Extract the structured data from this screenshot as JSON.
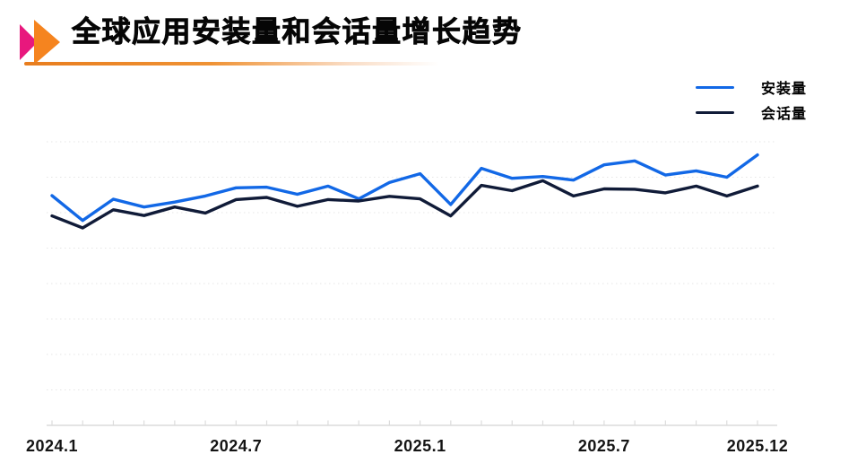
{
  "header": {
    "title": "全球应用安装量和会话量增长趋势",
    "marker_icon": {
      "name": "double-triangle-marker",
      "pink": "#E8187D",
      "orange": "#F5841F"
    },
    "underline_colors": [
      "#E87D1E",
      "rgba(255,255,255,0)"
    ]
  },
  "legend": {
    "position": "top-right",
    "items": [
      {
        "label": "安装量",
        "color": "#1268E6"
      },
      {
        "label": "会话量",
        "color": "#101B38"
      }
    ]
  },
  "chart_data": {
    "type": "line",
    "title": "全球应用安装量和会话量增长趋势",
    "xlabel": "",
    "ylabel": "",
    "y_axis_labels_visible": false,
    "grid": "horizontal-dotted",
    "ylim": [
      0,
      9
    ],
    "x": [
      "2024.1",
      "2024.2",
      "2024.3",
      "2024.4",
      "2024.5",
      "2024.6",
      "2024.7",
      "2024.8",
      "2024.9",
      "2024.10",
      "2024.11",
      "2024.12",
      "2025.1",
      "2025.2",
      "2025.3",
      "2025.4",
      "2025.5",
      "2025.6",
      "2025.7",
      "2025.8",
      "2025.9",
      "2025.10",
      "2025.11",
      "2025.12"
    ],
    "x_tick_labels": [
      "2024.1",
      "2024.7",
      "2025.1",
      "2025.7",
      "2025.12"
    ],
    "x_label_indices": [
      0,
      6,
      12,
      18,
      23
    ],
    "series": [
      {
        "name": "安装量",
        "color": "#1268E6",
        "values": [
          6.48,
          5.78,
          6.38,
          6.16,
          6.3,
          6.47,
          6.7,
          6.72,
          6.52,
          6.75,
          6.39,
          6.85,
          7.1,
          6.23,
          7.25,
          6.97,
          7.02,
          6.92,
          7.35,
          7.46,
          7.06,
          7.18,
          7.0,
          7.63
        ]
      },
      {
        "name": "会话量",
        "color": "#101B38",
        "values": [
          5.91,
          5.57,
          6.08,
          5.92,
          6.16,
          5.99,
          6.37,
          6.43,
          6.18,
          6.37,
          6.33,
          6.46,
          6.39,
          5.91,
          6.77,
          6.62,
          6.9,
          6.47,
          6.67,
          6.66,
          6.56,
          6.75,
          6.47,
          6.75
        ]
      }
    ],
    "style": {
      "grid_color": "#e6e6e6",
      "axis_color": "#dcdcdc",
      "line_width": 3.4
    }
  }
}
